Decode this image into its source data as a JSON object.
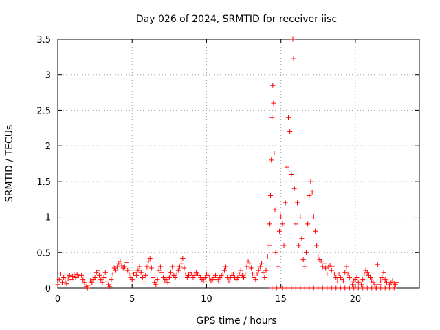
{
  "chart_data": {
    "type": "scatter",
    "title": "Day 026 of 2024, SRMTID for receiver iisc",
    "xlabel": "GPS time / hours",
    "ylabel": "SRMTID / TECUs",
    "xlim": [
      0,
      24.3
    ],
    "ylim": [
      0,
      3.5
    ],
    "xticks": [
      0,
      5,
      10,
      15,
      20
    ],
    "xtick_labels": [
      "0",
      "5",
      "10",
      "15",
      "20"
    ],
    "yticks": [
      0,
      0.5,
      1,
      1.5,
      2,
      2.5,
      3,
      3.5
    ],
    "ytick_labels": [
      "0",
      "0.5",
      "1",
      "1.5",
      "2",
      "2.5",
      "3",
      "3.5"
    ],
    "grid": true,
    "marker": "+",
    "colors": {
      "series": "#ff0000",
      "axes": "#000000",
      "grid": "#a0a0a0",
      "background": "#ffffff"
    },
    "series": [
      {
        "name": "SRMTID",
        "points": [
          [
            0.0,
            0.05
          ],
          [
            0.1,
            0.12
          ],
          [
            0.2,
            0.2
          ],
          [
            0.3,
            0.08
          ],
          [
            0.4,
            0.15
          ],
          [
            0.5,
            0.1
          ],
          [
            0.6,
            0.06
          ],
          [
            0.7,
            0.14
          ],
          [
            0.8,
            0.18
          ],
          [
            0.9,
            0.12
          ],
          [
            1.0,
            0.16
          ],
          [
            1.1,
            0.2
          ],
          [
            1.2,
            0.15
          ],
          [
            1.3,
            0.19
          ],
          [
            1.4,
            0.17
          ],
          [
            1.5,
            0.14
          ],
          [
            1.6,
            0.18
          ],
          [
            1.7,
            0.12
          ],
          [
            1.8,
            0.08
          ],
          [
            1.9,
            0.02
          ],
          [
            2.0,
            0.0
          ],
          [
            2.1,
            0.04
          ],
          [
            2.2,
            0.1
          ],
          [
            2.3,
            0.08
          ],
          [
            2.4,
            0.12
          ],
          [
            2.5,
            0.15
          ],
          [
            2.6,
            0.22
          ],
          [
            2.7,
            0.25
          ],
          [
            2.8,
            0.18
          ],
          [
            2.9,
            0.12
          ],
          [
            3.0,
            0.08
          ],
          [
            3.1,
            0.15
          ],
          [
            3.2,
            0.22
          ],
          [
            3.3,
            0.1
          ],
          [
            3.4,
            0.05
          ],
          [
            3.5,
            0.02
          ],
          [
            3.6,
            0.12
          ],
          [
            3.7,
            0.2
          ],
          [
            3.8,
            0.28
          ],
          [
            3.9,
            0.25
          ],
          [
            4.0,
            0.3
          ],
          [
            4.1,
            0.35
          ],
          [
            4.2,
            0.38
          ],
          [
            4.3,
            0.32
          ],
          [
            4.4,
            0.28
          ],
          [
            4.5,
            0.3
          ],
          [
            4.6,
            0.36
          ],
          [
            4.7,
            0.25
          ],
          [
            4.8,
            0.2
          ],
          [
            4.9,
            0.15
          ],
          [
            5.0,
            0.12
          ],
          [
            5.1,
            0.2
          ],
          [
            5.2,
            0.22
          ],
          [
            5.3,
            0.18
          ],
          [
            5.4,
            0.25
          ],
          [
            5.5,
            0.3
          ],
          [
            5.6,
            0.22
          ],
          [
            5.7,
            0.15
          ],
          [
            5.8,
            0.1
          ],
          [
            5.9,
            0.18
          ],
          [
            6.0,
            0.3
          ],
          [
            6.1,
            0.38
          ],
          [
            6.2,
            0.42
          ],
          [
            6.3,
            0.28
          ],
          [
            6.4,
            0.15
          ],
          [
            6.5,
            0.08
          ],
          [
            6.6,
            0.05
          ],
          [
            6.7,
            0.12
          ],
          [
            6.8,
            0.25
          ],
          [
            6.9,
            0.3
          ],
          [
            7.0,
            0.22
          ],
          [
            7.1,
            0.15
          ],
          [
            7.2,
            0.1
          ],
          [
            7.3,
            0.12
          ],
          [
            7.4,
            0.08
          ],
          [
            7.5,
            0.15
          ],
          [
            7.6,
            0.22
          ],
          [
            7.7,
            0.3
          ],
          [
            7.8,
            0.18
          ],
          [
            7.9,
            0.15
          ],
          [
            8.0,
            0.2
          ],
          [
            8.1,
            0.25
          ],
          [
            8.2,
            0.3
          ],
          [
            8.3,
            0.35
          ],
          [
            8.4,
            0.42
          ],
          [
            8.5,
            0.28
          ],
          [
            8.6,
            0.2
          ],
          [
            8.7,
            0.15
          ],
          [
            8.8,
            0.18
          ],
          [
            8.9,
            0.22
          ],
          [
            9.0,
            0.2
          ],
          [
            9.1,
            0.15
          ],
          [
            9.2,
            0.18
          ],
          [
            9.3,
            0.22
          ],
          [
            9.4,
            0.2
          ],
          [
            9.5,
            0.18
          ],
          [
            9.6,
            0.15
          ],
          [
            9.7,
            0.12
          ],
          [
            9.8,
            0.1
          ],
          [
            9.9,
            0.15
          ],
          [
            10.0,
            0.2
          ],
          [
            10.1,
            0.18
          ],
          [
            10.2,
            0.14
          ],
          [
            10.3,
            0.1
          ],
          [
            10.4,
            0.12
          ],
          [
            10.5,
            0.15
          ],
          [
            10.6,
            0.18
          ],
          [
            10.7,
            0.12
          ],
          [
            10.8,
            0.1
          ],
          [
            10.9,
            0.15
          ],
          [
            11.0,
            0.18
          ],
          [
            11.1,
            0.2
          ],
          [
            11.2,
            0.25
          ],
          [
            11.3,
            0.3
          ],
          [
            11.4,
            0.15
          ],
          [
            11.5,
            0.1
          ],
          [
            11.6,
            0.15
          ],
          [
            11.7,
            0.18
          ],
          [
            11.8,
            0.2
          ],
          [
            11.9,
            0.15
          ],
          [
            12.0,
            0.12
          ],
          [
            12.1,
            0.15
          ],
          [
            12.2,
            0.2
          ],
          [
            12.3,
            0.25
          ],
          [
            12.4,
            0.18
          ],
          [
            12.5,
            0.15
          ],
          [
            12.6,
            0.2
          ],
          [
            12.7,
            0.3
          ],
          [
            12.8,
            0.38
          ],
          [
            12.9,
            0.35
          ],
          [
            13.0,
            0.28
          ],
          [
            13.1,
            0.2
          ],
          [
            13.2,
            0.15
          ],
          [
            13.3,
            0.12
          ],
          [
            13.4,
            0.2
          ],
          [
            13.5,
            0.25
          ],
          [
            13.6,
            0.3
          ],
          [
            13.7,
            0.35
          ],
          [
            13.8,
            0.22
          ],
          [
            13.9,
            0.15
          ],
          [
            14.0,
            0.25
          ],
          [
            14.1,
            0.45
          ],
          [
            14.2,
            0.6
          ],
          [
            14.25,
            0.9
          ],
          [
            14.3,
            1.3
          ],
          [
            14.35,
            1.8
          ],
          [
            14.4,
            2.4
          ],
          [
            14.45,
            2.85
          ],
          [
            14.5,
            2.6
          ],
          [
            14.55,
            1.9
          ],
          [
            14.6,
            1.1
          ],
          [
            14.65,
            0.5
          ],
          [
            14.7,
            0.0
          ],
          [
            14.8,
            0.3
          ],
          [
            14.9,
            0.8
          ],
          [
            15.0,
            1.0
          ],
          [
            15.1,
            0.9
          ],
          [
            15.2,
            0.6
          ],
          [
            15.3,
            1.2
          ],
          [
            15.4,
            1.7
          ],
          [
            15.5,
            2.4
          ],
          [
            15.6,
            2.2
          ],
          [
            15.7,
            1.6
          ],
          [
            15.8,
            3.5
          ],
          [
            15.85,
            3.23
          ],
          [
            15.9,
            1.4
          ],
          [
            16.0,
            0.9
          ],
          [
            16.1,
            1.2
          ],
          [
            16.2,
            0.6
          ],
          [
            16.3,
            1.0
          ],
          [
            16.4,
            0.7
          ],
          [
            16.5,
            0.4
          ],
          [
            16.6,
            0.3
          ],
          [
            16.7,
            0.5
          ],
          [
            16.8,
            0.9
          ],
          [
            16.9,
            1.3
          ],
          [
            17.0,
            1.5
          ],
          [
            17.1,
            1.35
          ],
          [
            17.2,
            1.0
          ],
          [
            17.3,
            0.8
          ],
          [
            17.4,
            0.6
          ],
          [
            17.5,
            0.45
          ],
          [
            17.6,
            0.4
          ],
          [
            17.7,
            0.38
          ],
          [
            17.8,
            0.3
          ],
          [
            17.9,
            0.35
          ],
          [
            18.0,
            0.28
          ],
          [
            18.1,
            0.2
          ],
          [
            18.2,
            0.3
          ],
          [
            18.3,
            0.32
          ],
          [
            18.4,
            0.25
          ],
          [
            18.5,
            0.3
          ],
          [
            18.6,
            0.2
          ],
          [
            18.7,
            0.15
          ],
          [
            18.8,
            0.1
          ],
          [
            18.9,
            0.2
          ],
          [
            19.0,
            0.15
          ],
          [
            19.1,
            0.12
          ],
          [
            19.2,
            0.1
          ],
          [
            19.3,
            0.22
          ],
          [
            19.4,
            0.3
          ],
          [
            19.5,
            0.2
          ],
          [
            19.6,
            0.15
          ],
          [
            19.7,
            0.1
          ],
          [
            19.8,
            0.05
          ],
          [
            19.9,
            0.1
          ],
          [
            20.0,
            0.12
          ],
          [
            20.1,
            0.15
          ],
          [
            20.2,
            0.08
          ],
          [
            20.3,
            0.1
          ],
          [
            20.4,
            0.05
          ],
          [
            20.5,
            0.12
          ],
          [
            20.6,
            0.2
          ],
          [
            20.7,
            0.25
          ],
          [
            20.8,
            0.22
          ],
          [
            20.9,
            0.18
          ],
          [
            21.0,
            0.15
          ],
          [
            21.1,
            0.1
          ],
          [
            21.2,
            0.08
          ],
          [
            21.3,
            0.05
          ],
          [
            21.4,
            0.0
          ],
          [
            21.5,
            0.33
          ],
          [
            21.6,
            0.05
          ],
          [
            21.7,
            0.1
          ],
          [
            21.8,
            0.15
          ],
          [
            21.9,
            0.22
          ],
          [
            22.0,
            0.12
          ],
          [
            22.1,
            0.08
          ],
          [
            22.2,
            0.1
          ],
          [
            22.3,
            0.05
          ],
          [
            22.4,
            0.08
          ],
          [
            22.5,
            0.1
          ],
          [
            22.6,
            0.07
          ],
          [
            22.7,
            0.05
          ],
          [
            22.8,
            0.08
          ],
          [
            14.4,
            0.0
          ],
          [
            14.8,
            0.0
          ],
          [
            15.1,
            0.0
          ],
          [
            15.4,
            0.0
          ],
          [
            15.7,
            0.0
          ],
          [
            16.0,
            0.0
          ],
          [
            16.3,
            0.0
          ],
          [
            16.6,
            0.0
          ],
          [
            16.9,
            0.0
          ],
          [
            17.2,
            0.0
          ],
          [
            17.5,
            0.0
          ],
          [
            17.8,
            0.0
          ],
          [
            18.1,
            0.0
          ],
          [
            18.4,
            0.0
          ],
          [
            18.7,
            0.0
          ],
          [
            19.0,
            0.0
          ],
          [
            19.3,
            0.0
          ],
          [
            19.6,
            0.0
          ],
          [
            19.9,
            0.0
          ],
          [
            20.2,
            0.0
          ],
          [
            20.5,
            0.0
          ],
          [
            20.8,
            0.0
          ],
          [
            21.1,
            0.0
          ],
          [
            21.4,
            0.0
          ],
          [
            21.7,
            0.0
          ],
          [
            22.0,
            0.0
          ],
          [
            22.3,
            0.0
          ],
          [
            22.6,
            0.0
          ]
        ]
      }
    ]
  }
}
